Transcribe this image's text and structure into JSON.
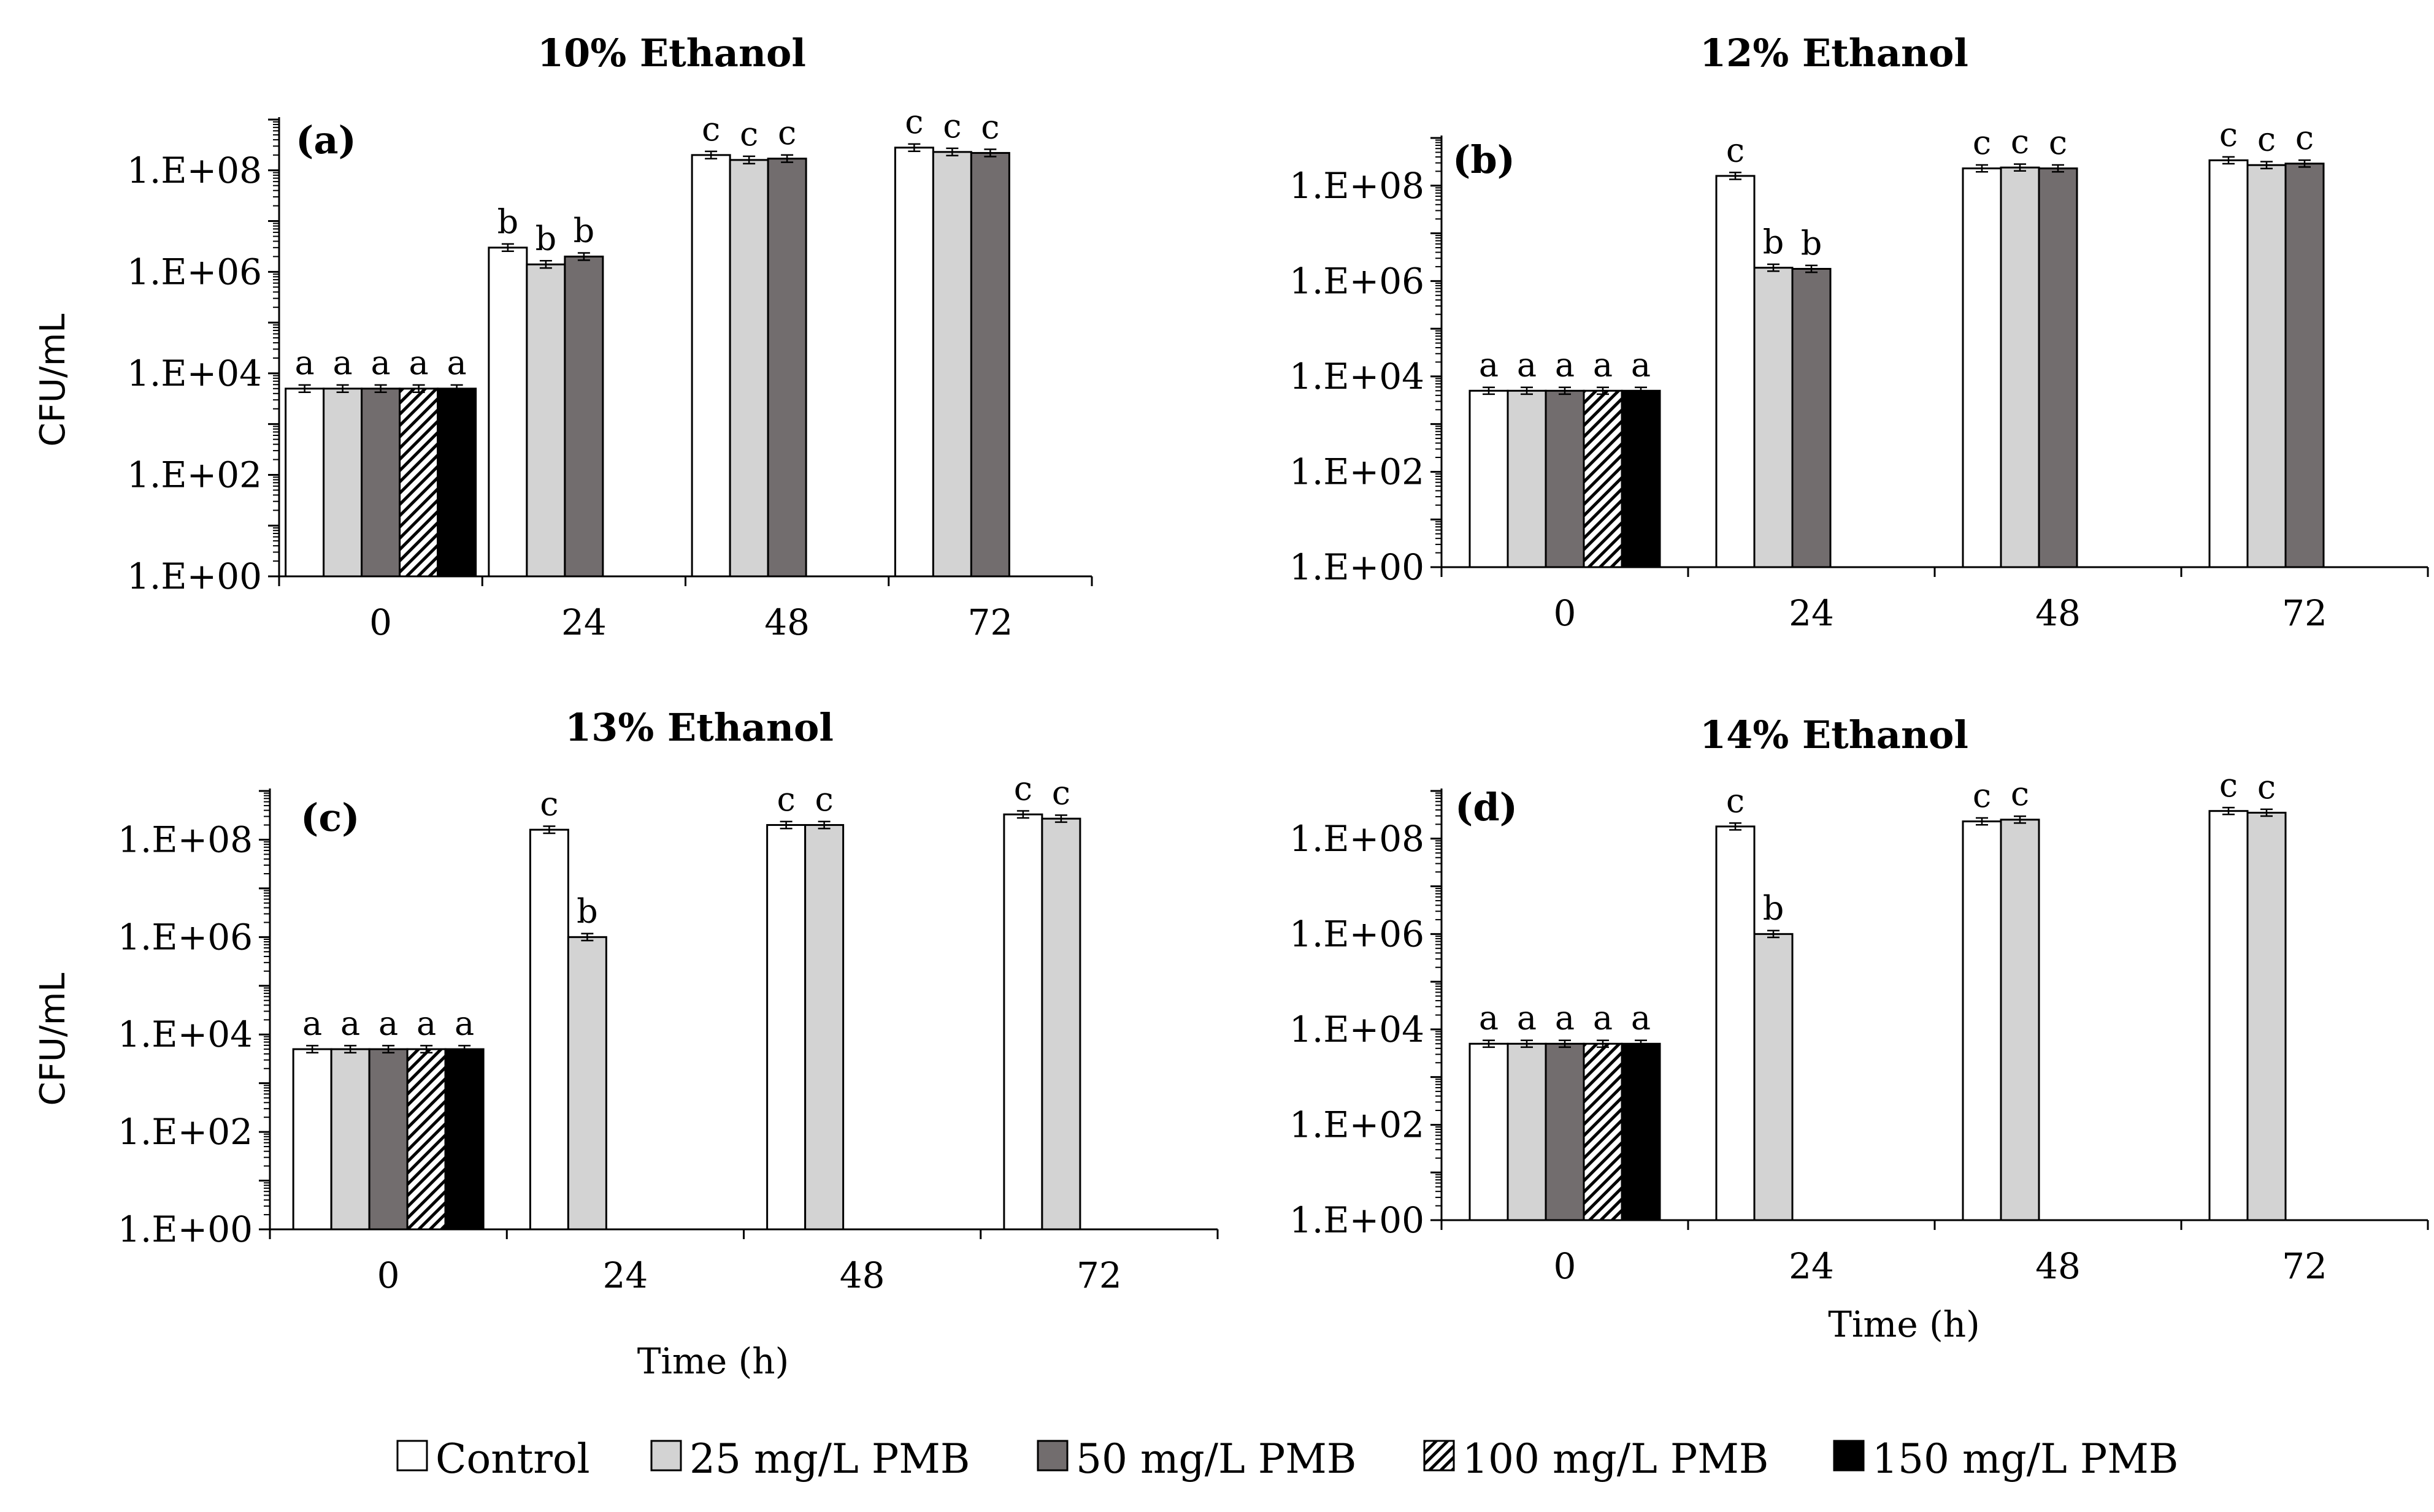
{
  "colors": {
    "Control": "#ffffff",
    "25 mg/L PMB": "#d3d3d3",
    "50 mg/L PMB": "#726d6e",
    "100 mg/L PMB": "hatch",
    "150 mg/L PMB": "#000000"
  },
  "legend": [
    "Control",
    "25 mg/L PMB",
    "50 mg/L PMB",
    "100 mg/L PMB",
    "150 mg/L PMB"
  ],
  "chart_data": [
    {
      "type": "bar",
      "title": "10% Ethanol",
      "panel_label": "(a)",
      "xlabel": "",
      "ylabel": "CFU/mL",
      "yscale": "log",
      "ylim": [
        1,
        1000000000
      ],
      "yticks": [
        "1.E+00",
        "1.E+02",
        "1.E+04",
        "1.E+06",
        "1.E+08"
      ],
      "categories": [
        "0",
        "24",
        "48",
        "72"
      ],
      "series": [
        {
          "name": "Control",
          "values": [
            5000,
            3000000,
            200000000,
            280000000
          ],
          "labels": [
            "a",
            "b",
            "c",
            "c"
          ]
        },
        {
          "name": "25 mg/L PMB",
          "values": [
            5000,
            1400000,
            160000000,
            230000000
          ],
          "labels": [
            "a",
            "b",
            "c",
            "c"
          ]
        },
        {
          "name": "50 mg/L PMB",
          "values": [
            5000,
            2000000,
            170000000,
            220000000
          ],
          "labels": [
            "a",
            "b",
            "c",
            "c"
          ]
        },
        {
          "name": "100 mg/L PMB",
          "values": [
            5000,
            null,
            null,
            null
          ],
          "labels": [
            "a",
            "",
            "",
            ""
          ]
        },
        {
          "name": "150 mg/L PMB",
          "values": [
            5000,
            null,
            null,
            null
          ],
          "labels": [
            "a",
            "",
            "",
            ""
          ]
        }
      ]
    },
    {
      "type": "bar",
      "title": "12% Ethanol",
      "panel_label": "(b)",
      "xlabel": "",
      "ylabel": "",
      "yscale": "log",
      "ylim": [
        1,
        1000000000
      ],
      "yticks": [
        "1.E+00",
        "1.E+02",
        "1.E+04",
        "1.E+06",
        "1.E+08"
      ],
      "categories": [
        "0",
        "24",
        "48",
        "72"
      ],
      "series": [
        {
          "name": "Control",
          "values": [
            5000,
            160000000,
            230000000,
            340000000
          ],
          "labels": [
            "a",
            "c",
            "c",
            "c"
          ]
        },
        {
          "name": "25 mg/L PMB",
          "values": [
            5000,
            1900000,
            240000000,
            270000000
          ],
          "labels": [
            "a",
            "b",
            "c",
            "c"
          ]
        },
        {
          "name": "50 mg/L PMB",
          "values": [
            5000,
            1800000,
            230000000,
            290000000
          ],
          "labels": [
            "a",
            "b",
            "c",
            "c"
          ]
        },
        {
          "name": "100 mg/L PMB",
          "values": [
            5000,
            null,
            null,
            null
          ],
          "labels": [
            "a",
            "",
            "",
            ""
          ]
        },
        {
          "name": "150 mg/L PMB",
          "values": [
            5000,
            null,
            null,
            null
          ],
          "labels": [
            "a",
            "",
            "",
            ""
          ]
        }
      ]
    },
    {
      "type": "bar",
      "title": "13% Ethanol",
      "panel_label": "(c)",
      "xlabel": "Time (h)",
      "ylabel": "CFU/mL",
      "yscale": "log",
      "ylim": [
        1,
        1000000000
      ],
      "yticks": [
        "1.E+00",
        "1.E+02",
        "1.E+04",
        "1.E+06",
        "1.E+08"
      ],
      "categories": [
        "0",
        "24",
        "48",
        "72"
      ],
      "series": [
        {
          "name": "Control",
          "values": [
            5000,
            160000000,
            200000000,
            330000000
          ],
          "labels": [
            "a",
            "c",
            "c",
            "c"
          ]
        },
        {
          "name": "25 mg/L PMB",
          "values": [
            5000,
            1000000,
            200000000,
            270000000
          ],
          "labels": [
            "a",
            "b",
            "c",
            "c"
          ]
        },
        {
          "name": "50 mg/L PMB",
          "values": [
            5000,
            null,
            null,
            null
          ],
          "labels": [
            "a",
            "",
            "",
            ""
          ]
        },
        {
          "name": "100 mg/L PMB",
          "values": [
            5000,
            null,
            null,
            null
          ],
          "labels": [
            "a",
            "",
            "",
            ""
          ]
        },
        {
          "name": "150 mg/L PMB",
          "values": [
            5000,
            null,
            null,
            null
          ],
          "labels": [
            "a",
            "",
            "",
            ""
          ]
        }
      ]
    },
    {
      "type": "bar",
      "title": "14% Ethanol",
      "panel_label": "(d)",
      "xlabel": "Time (h)",
      "ylabel": "",
      "yscale": "log",
      "ylim": [
        1,
        1000000000
      ],
      "yticks": [
        "1.E+00",
        "1.E+02",
        "1.E+04",
        "1.E+06",
        "1.E+08"
      ],
      "categories": [
        "0",
        "24",
        "48",
        "72"
      ],
      "series": [
        {
          "name": "Control",
          "values": [
            5000,
            180000000,
            230000000,
            380000000
          ],
          "labels": [
            "a",
            "c",
            "c",
            "c"
          ]
        },
        {
          "name": "25 mg/L PMB",
          "values": [
            5000,
            1000000,
            250000000,
            350000000
          ],
          "labels": [
            "a",
            "b",
            "c",
            "c"
          ]
        },
        {
          "name": "50 mg/L PMB",
          "values": [
            5000,
            null,
            null,
            null
          ],
          "labels": [
            "a",
            "",
            "",
            ""
          ]
        },
        {
          "name": "100 mg/L PMB",
          "values": [
            5000,
            null,
            null,
            null
          ],
          "labels": [
            "a",
            "",
            "",
            ""
          ]
        },
        {
          "name": "150 mg/L PMB",
          "values": [
            5000,
            null,
            null,
            null
          ],
          "labels": [
            "a",
            "",
            "",
            ""
          ]
        }
      ]
    }
  ]
}
